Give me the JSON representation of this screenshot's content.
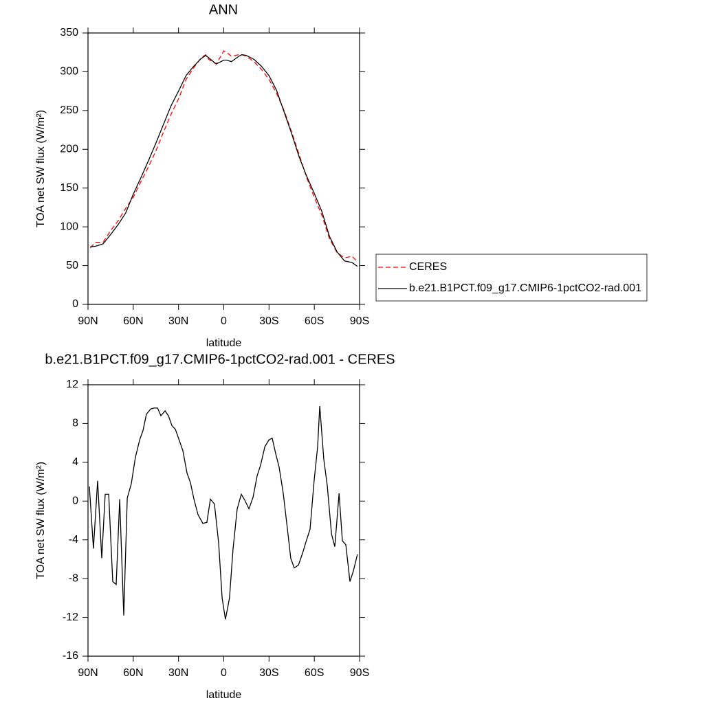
{
  "chart_data": [
    {
      "type": "line",
      "title": "ANN",
      "xlabel": "latitude",
      "ylabel": "TOA net SW flux (W/m²)",
      "x": [
        88.6,
        85,
        80,
        75,
        70,
        65,
        60,
        55,
        50,
        45,
        40,
        35,
        30,
        25,
        20,
        15,
        12,
        10,
        5,
        2,
        0,
        -2,
        -5,
        -10,
        -12,
        -15,
        -20,
        -25,
        -30,
        -35,
        -40,
        -45,
        -50,
        -55,
        -60,
        -65,
        -70,
        -75,
        -80,
        -85,
        -88.6
      ],
      "series": [
        {
          "name": "CERES",
          "color": "#ff0000",
          "style": "dashed",
          "values": [
            73,
            80,
            80,
            95,
            108,
            124,
            138,
            158,
            177,
            198,
            222,
            245,
            265,
            290,
            305,
            318,
            322,
            316,
            310,
            320,
            327,
            325,
            320,
            322,
            322,
            320,
            313,
            303,
            290,
            272,
            250,
            222,
            193,
            163,
            138,
            115,
            85,
            67,
            60,
            62,
            55
          ]
        },
        {
          "name": "b.e21.B1PCT.f09_g17.CMIP6-1pctCO2-rad.001",
          "color": "#000000",
          "style": "solid",
          "values": [
            74,
            75,
            78,
            90,
            103,
            118,
            142,
            163,
            185,
            208,
            232,
            256,
            275,
            295,
            307,
            317,
            321,
            318,
            310,
            313,
            315,
            315,
            313,
            320,
            322,
            321,
            316,
            307,
            295,
            276,
            248,
            220,
            190,
            165,
            143,
            120,
            88,
            68,
            56,
            54,
            49
          ]
        }
      ],
      "xlim": [
        90,
        -90
      ],
      "xticks": [
        {
          "value": 90,
          "label": "90N"
        },
        {
          "value": 60,
          "label": "60N"
        },
        {
          "value": 30,
          "label": "30N"
        },
        0,
        {
          "value": -30,
          "label": "30S"
        },
        {
          "value": -60,
          "label": "60S"
        },
        {
          "value": -90,
          "label": "90S"
        }
      ],
      "ylim": [
        0,
        350
      ],
      "yticks": [
        0,
        50,
        100,
        150,
        200,
        250,
        300,
        350
      ],
      "legend": "right"
    },
    {
      "type": "line",
      "title": "b.e21.B1PCT.f09_g17.CMIP6-1pctCO2-rad.001 - CERES",
      "xlabel": "latitude",
      "ylabel": "TOA net SW flux (W/m²)",
      "x": [
        89.1,
        86.4,
        83.6,
        80.9,
        78.6,
        76.3,
        73.6,
        71.3,
        69.0,
        66.3,
        64.0,
        61.3,
        58.6,
        55.8,
        53.5,
        51.3,
        48.5,
        46.2,
        43.9,
        41.7,
        38.9,
        36.7,
        34.4,
        32.1,
        29.8,
        27.1,
        24.4,
        22.1,
        19.8,
        17.1,
        13.9,
        11.2,
        8.9,
        6.2,
        3.4,
        1.1,
        -1.1,
        -3.8,
        -6.1,
        -8.9,
        -11.6,
        -13.9,
        -16.7,
        -19.4,
        -22.1,
        -24.4,
        -27.2,
        -29.9,
        -32.1,
        -34.4,
        -36.7,
        -39.4,
        -42.2,
        -44.4,
        -46.7,
        -49.5,
        -52.2,
        -54.5,
        -57.2,
        -59.9,
        -62.2,
        -63.6,
        -66.3,
        -68.6,
        -71.4,
        -73.6,
        -76.4,
        -78.6,
        -80.9,
        -83.6,
        -85.9,
        -88.6
      ],
      "series": [
        {
          "color": "#000000",
          "style": "solid",
          "values": [
            1.5,
            -4.9,
            2.1,
            -5.9,
            0.7,
            0.7,
            -8.3,
            -8.6,
            0.2,
            -11.8,
            0.3,
            1.8,
            4.5,
            6.3,
            7.3,
            8.95,
            9.5,
            9.6,
            9.6,
            8.8,
            9.3,
            8.8,
            7.8,
            7.4,
            6.4,
            5.2,
            2.9,
            1.9,
            0.2,
            -1.4,
            -2.3,
            -2.2,
            0.2,
            -0.3,
            -4.3,
            -10.0,
            -12.2,
            -10.0,
            -5.0,
            -0.8,
            0.7,
            0.1,
            -0.8,
            0.4,
            2.6,
            3.7,
            5.6,
            6.3,
            6.5,
            4.9,
            3.5,
            0.8,
            -2.9,
            -5.9,
            -6.9,
            -6.6,
            -5.4,
            -4.2,
            -2.9,
            2.1,
            5.6,
            9.8,
            4.3,
            1.6,
            -3.4,
            -4.7,
            0.8,
            -4.1,
            -4.5,
            -8.3,
            -7.2,
            -5.5
          ]
        }
      ],
      "xlim": [
        90,
        -90
      ],
      "xticks": [
        {
          "value": 90,
          "label": "90N"
        },
        {
          "value": 60,
          "label": "60N"
        },
        {
          "value": 30,
          "label": "30N"
        },
        0,
        {
          "value": -30,
          "label": "30S"
        },
        {
          "value": -60,
          "label": "60S"
        },
        {
          "value": -90,
          "label": "90S"
        }
      ],
      "ylim": [
        -16,
        12
      ],
      "yticks": [
        -16,
        -12,
        -8,
        -4,
        0,
        4,
        8,
        12
      ]
    }
  ]
}
